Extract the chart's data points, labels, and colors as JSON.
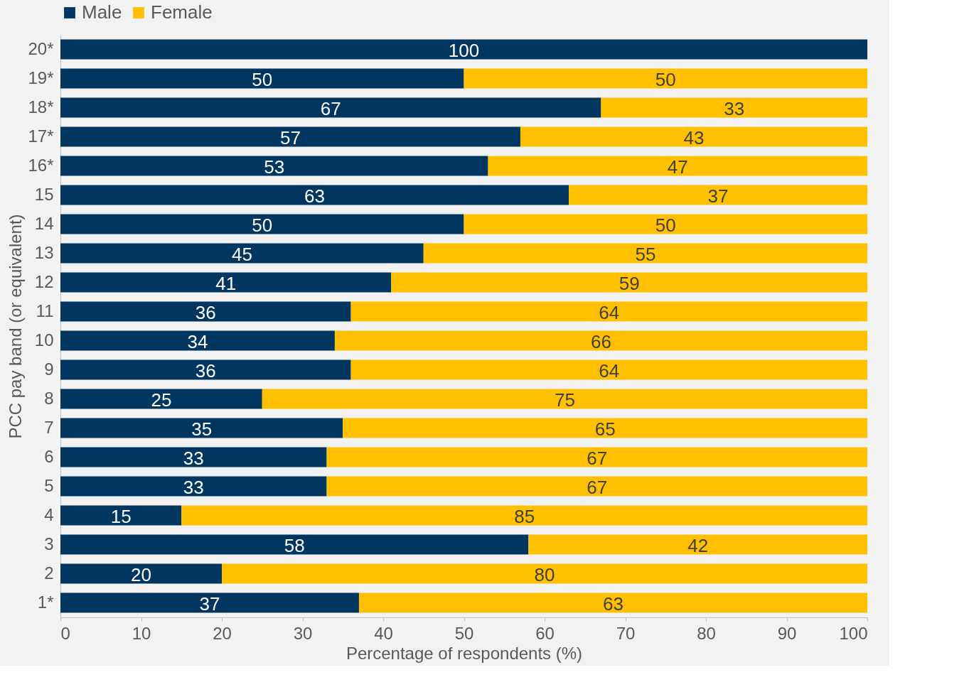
{
  "chart_data": {
    "type": "bar",
    "orientation": "horizontal",
    "stacked": true,
    "xlabel": "Percentage of respondents (%)",
    "ylabel": "PCC pay band (or equivalent)",
    "categories": [
      "20*",
      "19*",
      "18*",
      "17*",
      "16*",
      "15",
      "14",
      "13",
      "12",
      "11",
      "10",
      "9",
      "8",
      "7",
      "6",
      "5",
      "4",
      "3",
      "2",
      "1*"
    ],
    "series": [
      {
        "name": "Male",
        "color": "#00365f",
        "values": [
          100,
          50,
          67,
          57,
          53,
          63,
          50,
          45,
          41,
          36,
          34,
          36,
          25,
          35,
          33,
          33,
          15,
          58,
          20,
          37
        ]
      },
      {
        "name": "Female",
        "color": "#ffc000",
        "values": [
          null,
          50,
          33,
          43,
          47,
          37,
          50,
          55,
          59,
          64,
          66,
          64,
          75,
          65,
          67,
          67,
          85,
          42,
          80,
          63
        ]
      }
    ],
    "xlim": [
      0,
      100
    ],
    "xticks": [
      0,
      10,
      20,
      30,
      40,
      50,
      60,
      70,
      80,
      90,
      100
    ],
    "grid": false,
    "legend": "top",
    "data_labels": true
  }
}
